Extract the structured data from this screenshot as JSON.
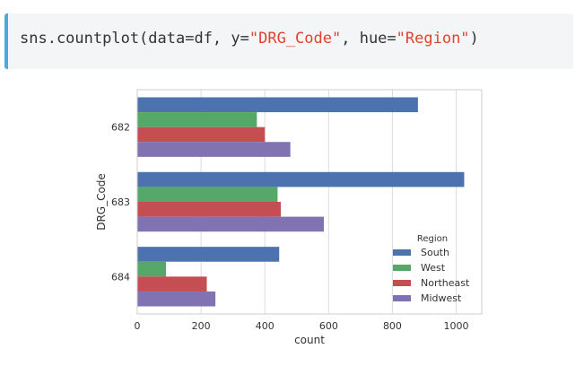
{
  "code_cell": {
    "prefix": "sns.countplot(data=df, y=",
    "y_arg": "\"DRG_Code\"",
    "middle": ", hue=",
    "hue_arg": "\"Region\"",
    "suffix": ")"
  },
  "colors": {
    "South": "#4c72b0",
    "West": "#55a868",
    "Northeast": "#c44e52",
    "Midwest": "#8172b2"
  },
  "chart_data": {
    "type": "bar",
    "orientation": "horizontal",
    "categories": [
      "682",
      "683",
      "684"
    ],
    "series": [
      {
        "name": "South",
        "values": [
          880,
          1025,
          445
        ]
      },
      {
        "name": "West",
        "values": [
          375,
          440,
          90
        ]
      },
      {
        "name": "Northeast",
        "values": [
          400,
          450,
          218
        ]
      },
      {
        "name": "Midwest",
        "values": [
          480,
          585,
          245
        ]
      }
    ],
    "xlabel": "count",
    "ylabel": "DRG_Code",
    "xlim": [
      0,
      1080
    ],
    "xticks": [
      0,
      200,
      400,
      600,
      800,
      1000
    ],
    "grid": true,
    "legend": {
      "title": "Region",
      "position": "lower-right"
    }
  }
}
